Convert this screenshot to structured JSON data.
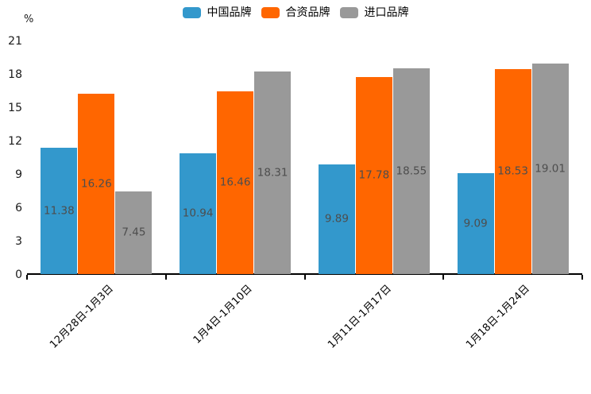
{
  "chart_data": {
    "type": "bar",
    "title": "",
    "xlabel": "",
    "ylabel": "%",
    "ylim": [
      0,
      21
    ],
    "yticks": [
      0,
      3,
      6,
      9,
      12,
      15,
      18,
      21
    ],
    "grid": false,
    "legend_position": "top-center",
    "value_labels": "inside-middle, two decimals",
    "categories": [
      "12月28日-1月3日",
      "1月4日-1月10日",
      "1月11日-1月17日",
      "1月18日-1月24日"
    ],
    "series": [
      {
        "name": "中国品牌",
        "color": "#3398cc",
        "values": [
          11.38,
          10.94,
          9.89,
          9.09
        ]
      },
      {
        "name": "合资品牌",
        "color": "#ff6600",
        "values": [
          16.26,
          16.46,
          17.78,
          18.53
        ]
      },
      {
        "name": "进口品牌",
        "color": "#999999",
        "values": [
          7.45,
          18.31,
          18.55,
          19.01
        ]
      }
    ]
  },
  "colors": {
    "background": "#ffffff",
    "axis": "#000000",
    "tick_text": "#1a1a1a",
    "bar_value_text": "#4d4d4d"
  }
}
